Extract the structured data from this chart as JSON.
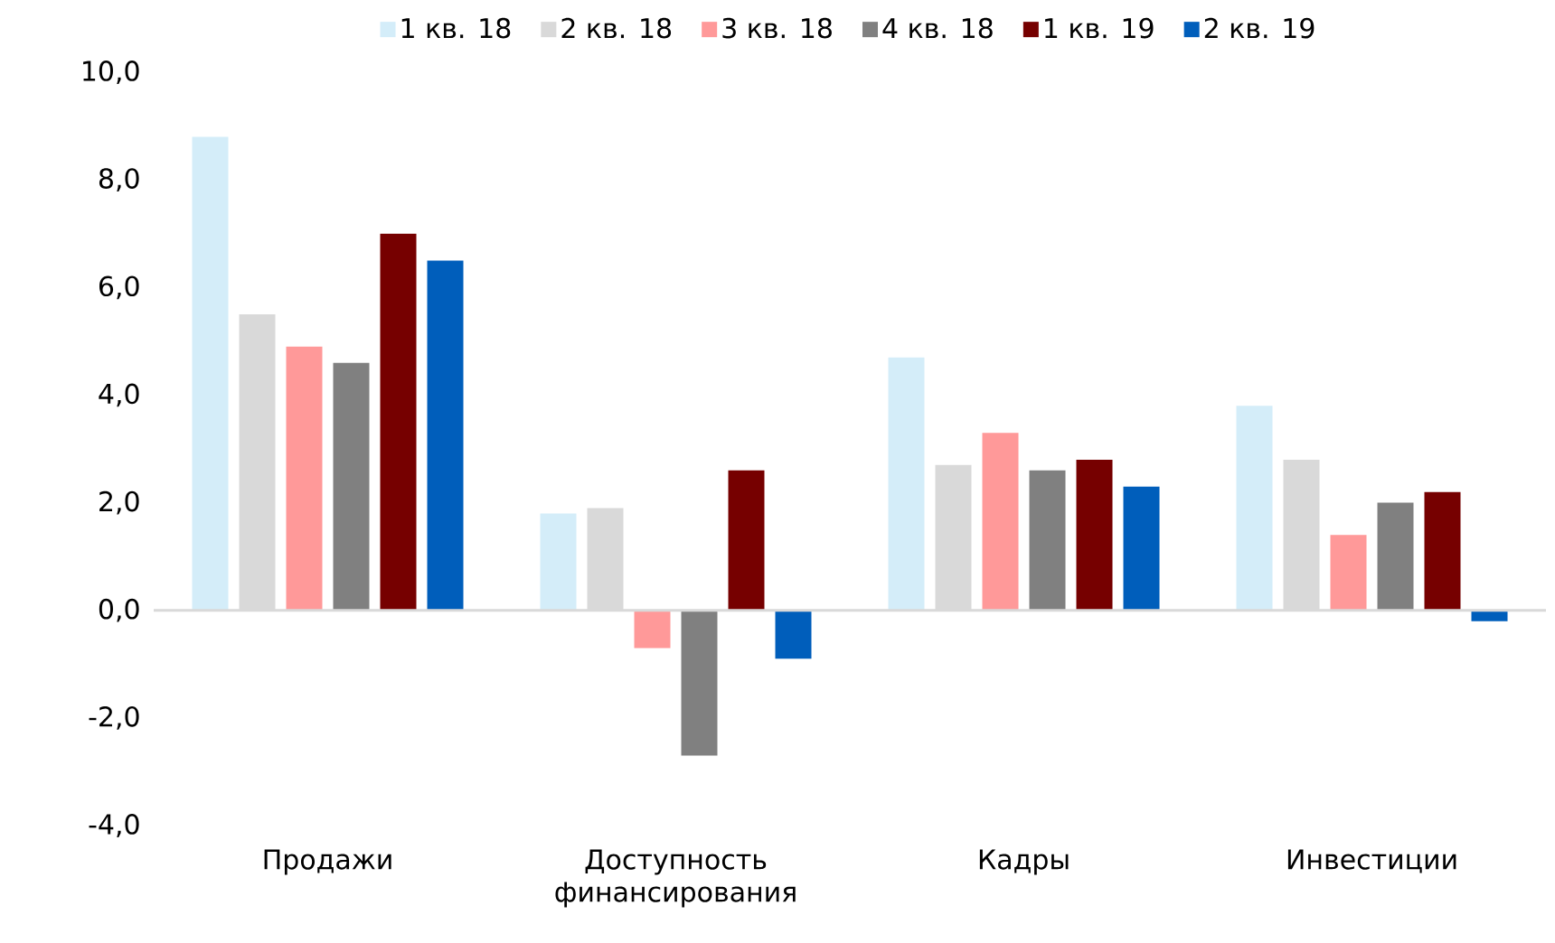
{
  "chart_data": {
    "type": "bar",
    "categories": [
      "Продажи",
      "Доступность финансирования",
      "Кадры",
      "Инвестиции"
    ],
    "series": [
      {
        "name": "1 кв. 18",
        "color": "#d4edf9",
        "values": [
          8.8,
          1.8,
          4.7,
          3.8
        ]
      },
      {
        "name": "2 кв. 18",
        "color": "#d9d9d9",
        "values": [
          5.5,
          1.9,
          2.7,
          2.8
        ]
      },
      {
        "name": "3 кв. 18",
        "color": "#ff9999",
        "values": [
          4.9,
          -0.7,
          3.3,
          1.4
        ]
      },
      {
        "name": "4 кв. 18",
        "color": "#808080",
        "values": [
          4.6,
          -2.7,
          2.6,
          2.0
        ]
      },
      {
        "name": "1 кв. 19",
        "color": "#760000",
        "values": [
          7.0,
          2.6,
          2.8,
          2.2
        ]
      },
      {
        "name": "2 кв. 19",
        "color": "#005ebb",
        "values": [
          6.5,
          -0.9,
          2.3,
          -0.2
        ]
      }
    ],
    "ylim": [
      -4,
      10
    ],
    "yticks": [
      {
        "value": -4,
        "label": "-4,0"
      },
      {
        "value": -2,
        "label": "-2,0"
      },
      {
        "value": 0,
        "label": "0,0"
      },
      {
        "value": 2,
        "label": "2,0"
      },
      {
        "value": 4,
        "label": "4,0"
      },
      {
        "value": 6,
        "label": "6,0"
      },
      {
        "value": 8,
        "label": "8,0"
      },
      {
        "value": 10,
        "label": "10,0"
      }
    ],
    "legend": "top"
  }
}
